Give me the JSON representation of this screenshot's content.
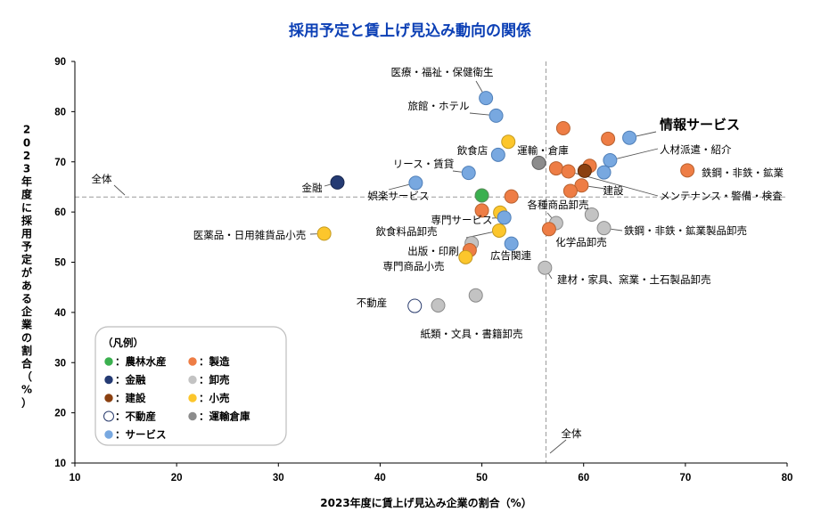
{
  "chart_data": {
    "type": "scatter",
    "title": "採用予定と賃上げ見込み動向の関係",
    "xlabel": "2023年度に賃上げ見込み企業の割合（%）",
    "ylabel": "2023年度に採用予定がある企業の割合（%）",
    "xlim": [
      10,
      80
    ],
    "ylim": [
      10,
      90
    ],
    "xticks": [
      10,
      20,
      30,
      40,
      50,
      60,
      70,
      80
    ],
    "yticks": [
      10,
      20,
      30,
      40,
      50,
      60,
      70,
      80,
      90
    ],
    "reference_lines": {
      "x": 56.3,
      "y": 63.0,
      "label": "全体"
    },
    "legend": {
      "title": "（凡例）",
      "placement": "bottom-left",
      "items": [
        {
          "key": "nourin",
          "label": "：農林水産"
        },
        {
          "key": "seizou",
          "label": "：製造"
        },
        {
          "key": "kinyu",
          "label": "：金融"
        },
        {
          "key": "oroshi",
          "label": "：卸売"
        },
        {
          "key": "kensetsu",
          "label": "：建設"
        },
        {
          "key": "kouri",
          "label": "：小売"
        },
        {
          "key": "fudousan",
          "label": "：不動産"
        },
        {
          "key": "unyu",
          "label": "：運輸倉庫"
        },
        {
          "key": "service",
          "label": "：サービス"
        }
      ]
    },
    "categories": {
      "nourin": {
        "fill": "#3bb04f",
        "stroke": "#5a8a5a"
      },
      "seizou": {
        "fill": "#ee7d45",
        "stroke": "#b8612f"
      },
      "kinyu": {
        "fill": "#253b73",
        "stroke": "#17264d"
      },
      "oroshi": {
        "fill": "#c3c3c3",
        "stroke": "#8a8a8a"
      },
      "kensetsu": {
        "fill": "#8b4010",
        "stroke": "#5e2b09"
      },
      "kouri": {
        "fill": "#fcc62c",
        "stroke": "#c49a20"
      },
      "fudousan": {
        "fill": "#ffffff",
        "stroke": "#2b3d6e"
      },
      "unyu": {
        "fill": "#8c8c8c",
        "stroke": "#5f5f5f"
      },
      "service": {
        "fill": "#78a8e0",
        "stroke": "#4f7fb8"
      }
    },
    "points": [
      {
        "x": 50.4,
        "y": 82.7,
        "cat": "service",
        "label": "医療・福祉・保健衛生"
      },
      {
        "x": 51.4,
        "y": 79.2,
        "cat": "service",
        "label": "旅館・ホテル"
      },
      {
        "x": 64.5,
        "y": 74.8,
        "cat": "service",
        "label": "情報サービス",
        "big": true
      },
      {
        "x": 62.6,
        "y": 70.3,
        "cat": "service",
        "label": "人材派遣・紹介"
      },
      {
        "x": 52.6,
        "y": 74.0,
        "cat": "kouri",
        "label": "飲食店"
      },
      {
        "x": 55.6,
        "y": 69.8,
        "cat": "unyu",
        "label": "運輸・倉庫"
      },
      {
        "x": 51.6,
        "y": 71.4,
        "cat": "service",
        "label": ""
      },
      {
        "x": 48.7,
        "y": 67.8,
        "cat": "service",
        "label": "リース・賃貸"
      },
      {
        "x": 35.8,
        "y": 65.9,
        "cat": "kinyu",
        "label": "金融"
      },
      {
        "x": 43.5,
        "y": 65.8,
        "cat": "service",
        "label": "娯楽サービス"
      },
      {
        "x": 50.0,
        "y": 63.3,
        "cat": "nourin",
        "label": ""
      },
      {
        "x": 52.9,
        "y": 63.1,
        "cat": "seizou",
        "label": ""
      },
      {
        "x": 50.0,
        "y": 60.3,
        "cat": "seizou",
        "label": ""
      },
      {
        "x": 51.8,
        "y": 59.9,
        "cat": "kouri",
        "label": ""
      },
      {
        "x": 52.2,
        "y": 58.9,
        "cat": "service",
        "label": "専門サービス"
      },
      {
        "x": 58.0,
        "y": 76.7,
        "cat": "seizou",
        "label": ""
      },
      {
        "x": 62.4,
        "y": 74.6,
        "cat": "seizou",
        "label": ""
      },
      {
        "x": 57.3,
        "y": 68.7,
        "cat": "seizou",
        "label": ""
      },
      {
        "x": 60.6,
        "y": 69.2,
        "cat": "seizou",
        "label": ""
      },
      {
        "x": 60.1,
        "y": 68.2,
        "cat": "kensetsu",
        "label": ""
      },
      {
        "x": 62.0,
        "y": 67.9,
        "cat": "service",
        "label": ""
      },
      {
        "x": 59.8,
        "y": 65.3,
        "cat": "seizou",
        "label": "建設"
      },
      {
        "x": 58.7,
        "y": 64.2,
        "cat": "seizou",
        "label": ""
      },
      {
        "x": 70.2,
        "y": 68.3,
        "cat": "seizou",
        "label": "鉄鋼・非鉄・鉱業"
      },
      {
        "x": 58.5,
        "y": 68.1,
        "cat": "seizou",
        "label": "メンテナンス・警備・検査"
      },
      {
        "x": 57.3,
        "y": 57.8,
        "cat": "oroshi",
        "label": "各種商品卸売"
      },
      {
        "x": 60.8,
        "y": 59.5,
        "cat": "oroshi",
        "label": "化学品卸売"
      },
      {
        "x": 62.0,
        "y": 56.8,
        "cat": "oroshi",
        "label": "鉄鋼・非鉄・鉱業製品卸売"
      },
      {
        "x": 56.6,
        "y": 56.6,
        "cat": "seizou",
        "label": ""
      },
      {
        "x": 34.5,
        "y": 55.7,
        "cat": "kouri",
        "label": "医薬品・日用雑貨品小売"
      },
      {
        "x": 51.7,
        "y": 56.3,
        "cat": "kouri",
        "label": "飲食料品卸売"
      },
      {
        "x": 49.0,
        "y": 53.8,
        "cat": "oroshi",
        "label": "出版・印刷"
      },
      {
        "x": 48.8,
        "y": 52.4,
        "cat": "seizou",
        "label": ""
      },
      {
        "x": 52.9,
        "y": 53.7,
        "cat": "service",
        "label": "広告関連"
      },
      {
        "x": 48.4,
        "y": 51.0,
        "cat": "kouri",
        "label": "専門商品小売"
      },
      {
        "x": 56.2,
        "y": 48.9,
        "cat": "oroshi",
        "label": "建材・家具、窯業・土石製品卸売"
      },
      {
        "x": 49.4,
        "y": 43.4,
        "cat": "oroshi",
        "label": ""
      },
      {
        "x": 43.4,
        "y": 41.3,
        "cat": "fudousan",
        "label": "不動産"
      },
      {
        "x": 45.7,
        "y": 41.4,
        "cat": "oroshi",
        "label": "紙類・文具・書籍卸売"
      }
    ],
    "annotations": [
      {
        "text": "全体",
        "ref": "hline"
      },
      {
        "text": "全体",
        "ref": "vline"
      }
    ]
  }
}
